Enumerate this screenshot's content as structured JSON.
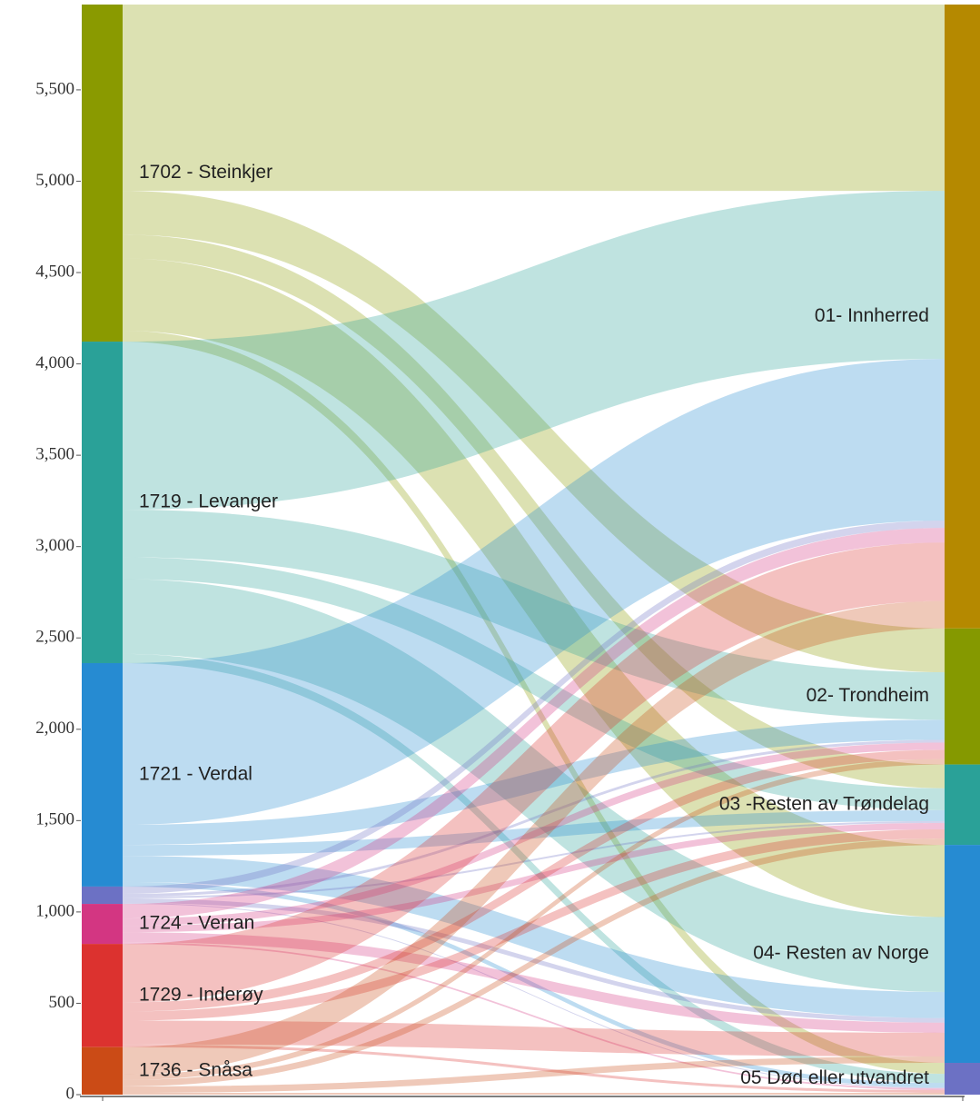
{
  "chart_data": {
    "type": "sankey",
    "sources": [
      {
        "name": "1702 - Steinkjer",
        "color": "#8a9a00"
      },
      {
        "name": "1719 - Levanger",
        "color": "#2aa198"
      },
      {
        "name": "1721 - Verdal",
        "color": "#268bd2"
      },
      {
        "name": null,
        "color": "#6c71c4"
      },
      {
        "name": "1724 - Verran",
        "color": "#d33682"
      },
      {
        "name": "1729 - Inderøy",
        "color": "#dc322f"
      },
      {
        "name": "1736 - Snåsa",
        "color": "#cb4b16"
      }
    ],
    "targets": [
      {
        "name": "01- Innherred",
        "color": "#b58900"
      },
      {
        "name": "02- Trondheim",
        "color": "#859900"
      },
      {
        "name": "03 -Resten av Trøndelag",
        "color": "#2aa198"
      },
      {
        "name": "04- Resten av Norge",
        "color": "#268bd2"
      },
      {
        "name": "05 Død eller utvandret",
        "color": "#6c71c4"
      }
    ],
    "flows": [
      {
        "source": 0,
        "target": 0,
        "value": 1020
      },
      {
        "source": 0,
        "target": 1,
        "value": 240
      },
      {
        "source": 0,
        "target": 2,
        "value": 130
      },
      {
        "source": 0,
        "target": 3,
        "value": 395
      },
      {
        "source": 0,
        "target": 4,
        "value": 60
      },
      {
        "source": 1,
        "target": 0,
        "value": 920
      },
      {
        "source": 1,
        "target": 1,
        "value": 260
      },
      {
        "source": 1,
        "target": 2,
        "value": 120
      },
      {
        "source": 1,
        "target": 3,
        "value": 410
      },
      {
        "source": 1,
        "target": 4,
        "value": 50
      },
      {
        "source": 2,
        "target": 0,
        "value": 885
      },
      {
        "source": 2,
        "target": 1,
        "value": 110
      },
      {
        "source": 2,
        "target": 2,
        "value": 60
      },
      {
        "source": 2,
        "target": 3,
        "value": 143
      },
      {
        "source": 2,
        "target": 4,
        "value": 25
      },
      {
        "source": 3,
        "target": 0,
        "value": 40
      },
      {
        "source": 3,
        "target": 1,
        "value": 15
      },
      {
        "source": 3,
        "target": 2,
        "value": 10
      },
      {
        "source": 3,
        "target": 3,
        "value": 25
      },
      {
        "source": 3,
        "target": 4,
        "value": 5
      },
      {
        "source": 4,
        "target": 0,
        "value": 80
      },
      {
        "source": 4,
        "target": 1,
        "value": 40
      },
      {
        "source": 4,
        "target": 2,
        "value": 35
      },
      {
        "source": 4,
        "target": 3,
        "value": 55
      },
      {
        "source": 4,
        "target": 4,
        "value": 9
      },
      {
        "source": 5,
        "target": 0,
        "value": 320
      },
      {
        "source": 5,
        "target": 1,
        "value": 50
      },
      {
        "source": 5,
        "target": 2,
        "value": 50
      },
      {
        "source": 5,
        "target": 3,
        "value": 130
      },
      {
        "source": 5,
        "target": 4,
        "value": 15
      },
      {
        "source": 6,
        "target": 0,
        "value": 150
      },
      {
        "source": 6,
        "target": 1,
        "value": 30
      },
      {
        "source": 6,
        "target": 2,
        "value": 35
      },
      {
        "source": 6,
        "target": 3,
        "value": 35
      },
      {
        "source": 6,
        "target": 4,
        "value": 10
      }
    ],
    "ylim": [
      0,
      5967
    ],
    "yticks": [
      0,
      500,
      {
        "value": 1000,
        "label": "1,000"
      },
      {
        "value": 1500,
        "label": "1,500"
      },
      {
        "value": 2000,
        "label": "2,000"
      },
      {
        "value": 2500,
        "label": "2,500"
      },
      {
        "value": 3000,
        "label": "3,000"
      },
      {
        "value": 3500,
        "label": "3,500"
      },
      {
        "value": 4000,
        "label": "4,000"
      },
      {
        "value": 4500,
        "label": "4,500"
      },
      {
        "value": 5000,
        "label": "5,000"
      },
      {
        "value": 5500,
        "label": "5,500"
      }
    ]
  }
}
